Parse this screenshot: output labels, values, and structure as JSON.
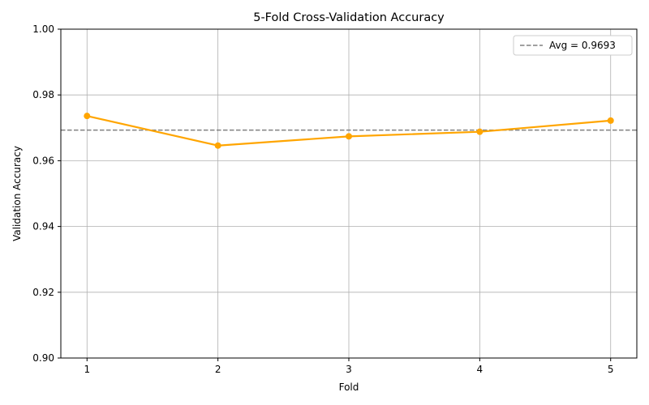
{
  "chart_data": {
    "type": "line",
    "title": "5-Fold Cross-Validation Accuracy",
    "xlabel": "Fold",
    "ylabel": "Validation Accuracy",
    "x": [
      1,
      2,
      3,
      4,
      5
    ],
    "xticks": [
      "1",
      "2",
      "3",
      "4",
      "5"
    ],
    "series": [
      {
        "values": [
          0.9736,
          0.9646,
          0.9674,
          0.9688,
          0.9722
        ],
        "color": "#FFA500",
        "marker": "circle"
      }
    ],
    "reference_lines": [
      {
        "y": 0.9693,
        "label": "Avg = 0.9693",
        "color": "#808080",
        "style": "dashed"
      }
    ],
    "ylim": [
      0.9,
      1.0
    ],
    "yticks": [
      "0.90",
      "0.92",
      "0.94",
      "0.96",
      "0.98",
      "1.00"
    ],
    "xlim": [
      0.8,
      5.2
    ],
    "grid": true,
    "legend": "top-right"
  }
}
